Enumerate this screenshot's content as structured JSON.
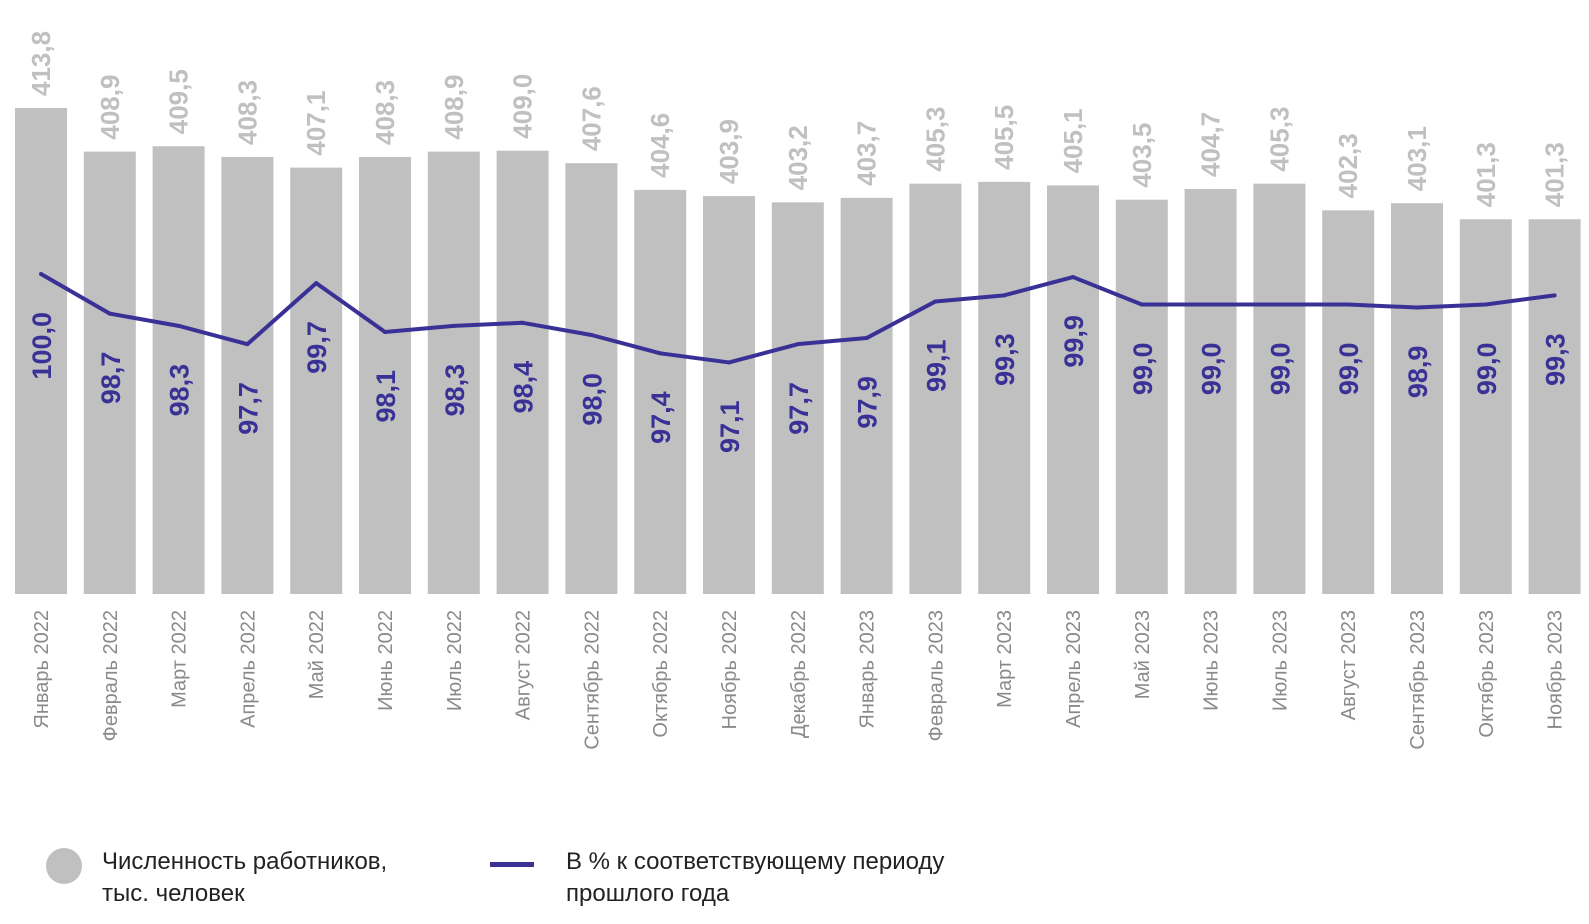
{
  "chart_data": {
    "type": "bar",
    "categories": [
      "Январь 2022",
      "Февраль 2022",
      "Март 2022",
      "Апрель 2022",
      "Май 2022",
      "Июнь 2022",
      "Июль 2022",
      "Август 2022",
      "Сентябрь 2022",
      "Октябрь 2022",
      "Ноябрь 2022",
      "Декабрь 2022",
      "Январь 2023",
      "Февраль 2023",
      "Март 2023",
      "Апрель 2023",
      "Май 2023",
      "Июнь 2023",
      "Июль 2023",
      "Август 2023",
      "Сентябрь 2023",
      "Октябрь 2023",
      "Ноябрь 2023"
    ],
    "series": [
      {
        "name": "Численность работников, тыс. человек",
        "type": "bar",
        "values": [
          413.8,
          408.9,
          409.5,
          408.3,
          407.1,
          408.3,
          408.9,
          409.0,
          407.6,
          404.6,
          403.9,
          403.2,
          403.7,
          405.3,
          405.5,
          405.1,
          403.5,
          404.7,
          405.3,
          402.3,
          403.1,
          401.3,
          401.3
        ],
        "labels": [
          "413,8",
          "408,9",
          "409,5",
          "408,3",
          "407,1",
          "408,3",
          "408,9",
          "409,0",
          "407,6",
          "404,6",
          "403,9",
          "403,2",
          "403,7",
          "405,3",
          "405,5",
          "405,1",
          "403,5",
          "404,7",
          "405,3",
          "402,3",
          "403,1",
          "401,3",
          "401,3"
        ]
      },
      {
        "name": "В % к соответствующему периоду прошлого года",
        "type": "line",
        "values": [
          100.0,
          98.7,
          98.3,
          97.7,
          99.7,
          98.1,
          98.3,
          98.4,
          98.0,
          97.4,
          97.1,
          97.7,
          97.9,
          99.1,
          99.3,
          99.9,
          99.0,
          99.0,
          99.0,
          99.0,
          98.9,
          99.0,
          99.3
        ],
        "labels": [
          "100,0",
          "98,7",
          "98,3",
          "97,7",
          "99,7",
          "98,1",
          "98,3",
          "98,4",
          "98,0",
          "97,4",
          "97,1",
          "97,7",
          "97,9",
          "99,1",
          "99,3",
          "99,9",
          "99,0",
          "99,0",
          "99,0",
          "99,0",
          "98,9",
          "99,0",
          "99,3"
        ]
      }
    ],
    "legend": {
      "position": "bottom-left",
      "bars_label_lines": [
        "Численность работников,",
        "тыс. человек"
      ],
      "line_label_lines": [
        "В % к соответствующему периоду",
        "прошлого года"
      ]
    },
    "colors": {
      "bar": "#c0c0c0",
      "bar_label": "#c0c0c0",
      "line": "#3a3196",
      "line_label": "#3a3196",
      "category_label": "#8a8a8a"
    },
    "grid": false
  }
}
